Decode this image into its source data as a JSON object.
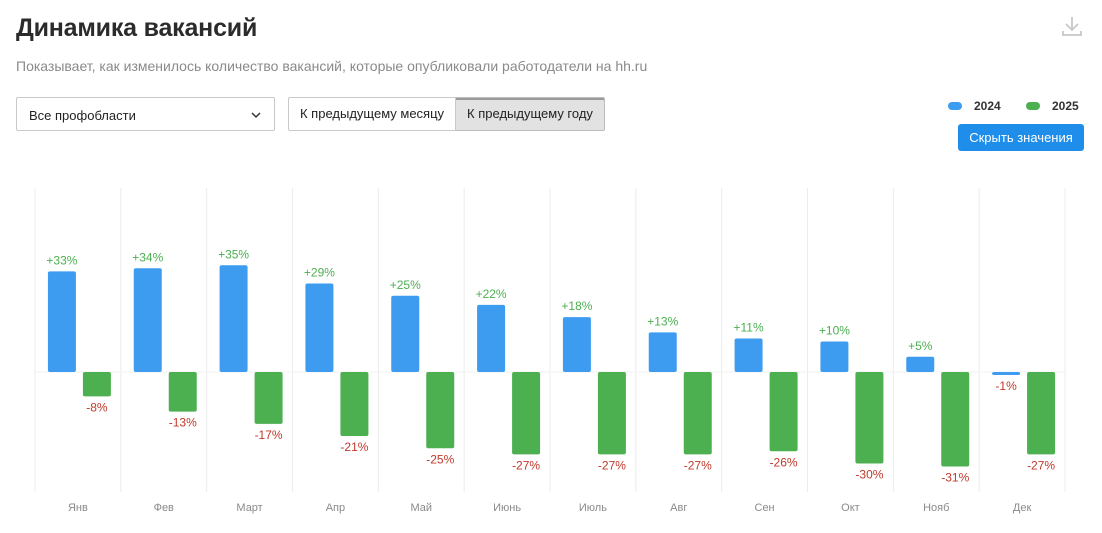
{
  "header": {
    "title": "Динамика вакансий",
    "subtitle": "Показывает, как изменилось количество вакансий, которые опубликовали работодатели на hh.ru"
  },
  "filters": {
    "profarea": "Все профобласти",
    "compare_month": "К предыдущему месяцу",
    "compare_year": "К предыдущему году",
    "active": "compare_year"
  },
  "legend": [
    {
      "name": "2024",
      "color": "#3d9cf0"
    },
    {
      "name": "2025",
      "color": "#4caf50"
    }
  ],
  "hide_values_label": "Скрыть значения",
  "colors": {
    "positive_label": "#4caf50",
    "negative_label": "#c0392b",
    "grid": "#ececec"
  },
  "chart_data": {
    "type": "bar",
    "categories": [
      "Янв",
      "Фев",
      "Март",
      "Апр",
      "Май",
      "Июнь",
      "Июль",
      "Авг",
      "Сен",
      "Окт",
      "Нояб",
      "Дек"
    ],
    "series": [
      {
        "name": "2024",
        "values": [
          33,
          34,
          35,
          29,
          25,
          22,
          18,
          13,
          11,
          10,
          5,
          -1
        ]
      },
      {
        "name": "2025",
        "values": [
          -8,
          -13,
          -17,
          -21,
          -25,
          -27,
          -27,
          -27,
          -26,
          -30,
          -31,
          -27
        ]
      }
    ],
    "labels": [
      [
        "+33%",
        "+34%",
        "+35%",
        "+29%",
        "+25%",
        "+22%",
        "+18%",
        "+13%",
        "+11%",
        "+10%",
        "+5%",
        "-1%"
      ],
      [
        "-8%",
        "-13%",
        "-17%",
        "-21%",
        "-25%",
        "-27%",
        "-27%",
        "-27%",
        "-26%",
        "-30%",
        "-31%",
        "-27%"
      ]
    ],
    "unit": "%",
    "ylim": [
      -40,
      40
    ]
  }
}
